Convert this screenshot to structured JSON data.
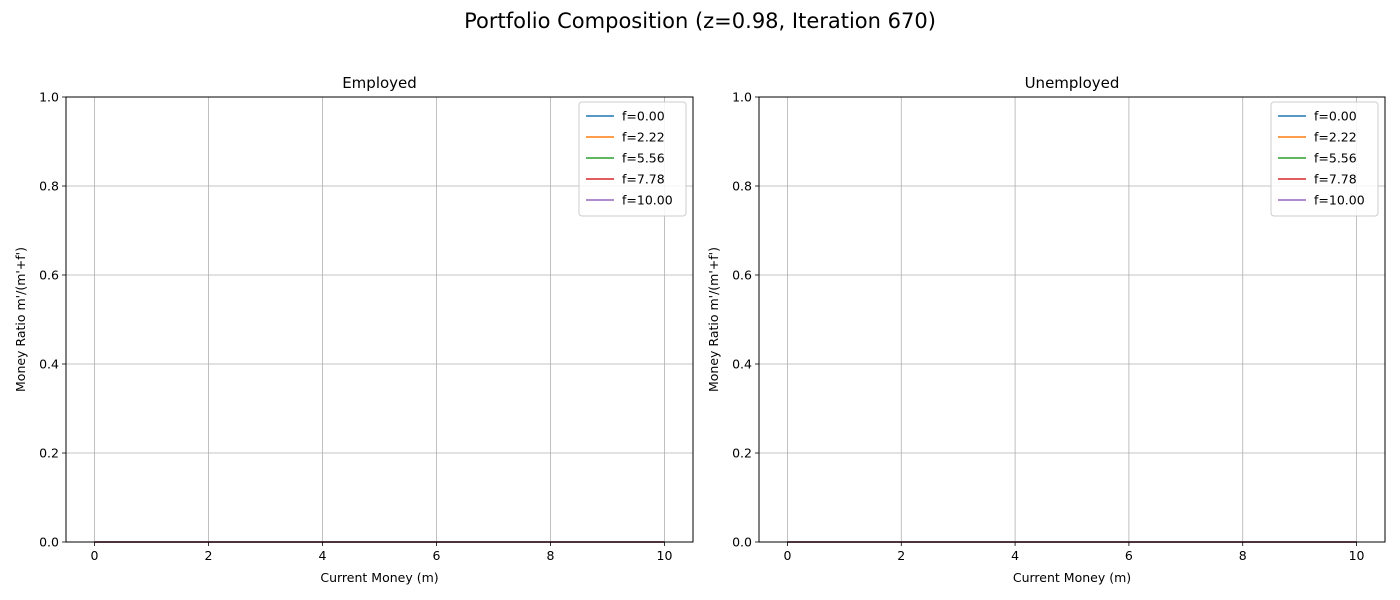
{
  "suptitle": "Portfolio Composition (z=0.98, Iteration 670)",
  "chart_data": [
    {
      "type": "line",
      "title": "Employed",
      "xlabel": "Current Money (m)",
      "ylabel": "Money Ratio m'/(m'+f')",
      "xlim": [
        -0.5,
        10.5
      ],
      "ylim": [
        0,
        1
      ],
      "xticks": [
        0,
        2,
        4,
        6,
        8,
        10
      ],
      "yticks": [
        0.0,
        0.2,
        0.4,
        0.6,
        0.8,
        1.0
      ],
      "grid": true,
      "legend_position": "top-right",
      "x": [
        0,
        10
      ],
      "series": [
        {
          "name": "f=0.00",
          "color": "#1f77b4",
          "values": [
            0,
            0
          ]
        },
        {
          "name": "f=2.22",
          "color": "#ff7f0e",
          "values": [
            0,
            0
          ]
        },
        {
          "name": "f=5.56",
          "color": "#2ca02c",
          "values": [
            0,
            0
          ]
        },
        {
          "name": "f=7.78",
          "color": "#d62728",
          "values": [
            0,
            0
          ]
        },
        {
          "name": "f=10.00",
          "color": "#9467bd",
          "values": [
            0,
            0
          ]
        }
      ]
    },
    {
      "type": "line",
      "title": "Unemployed",
      "xlabel": "Current Money (m)",
      "ylabel": "Money Ratio m'/(m'+f')",
      "xlim": [
        -0.5,
        10.5
      ],
      "ylim": [
        0,
        1
      ],
      "xticks": [
        0,
        2,
        4,
        6,
        8,
        10
      ],
      "yticks": [
        0.0,
        0.2,
        0.4,
        0.6,
        0.8,
        1.0
      ],
      "grid": true,
      "legend_position": "top-right",
      "x": [
        0,
        10
      ],
      "series": [
        {
          "name": "f=0.00",
          "color": "#1f77b4",
          "values": [
            0,
            0
          ]
        },
        {
          "name": "f=2.22",
          "color": "#ff7f0e",
          "values": [
            0,
            0
          ]
        },
        {
          "name": "f=5.56",
          "color": "#2ca02c",
          "values": [
            0,
            0
          ]
        },
        {
          "name": "f=7.78",
          "color": "#d62728",
          "values": [
            0,
            0
          ]
        },
        {
          "name": "f=10.00",
          "color": "#9467bd",
          "values": [
            0,
            0
          ]
        }
      ]
    }
  ]
}
